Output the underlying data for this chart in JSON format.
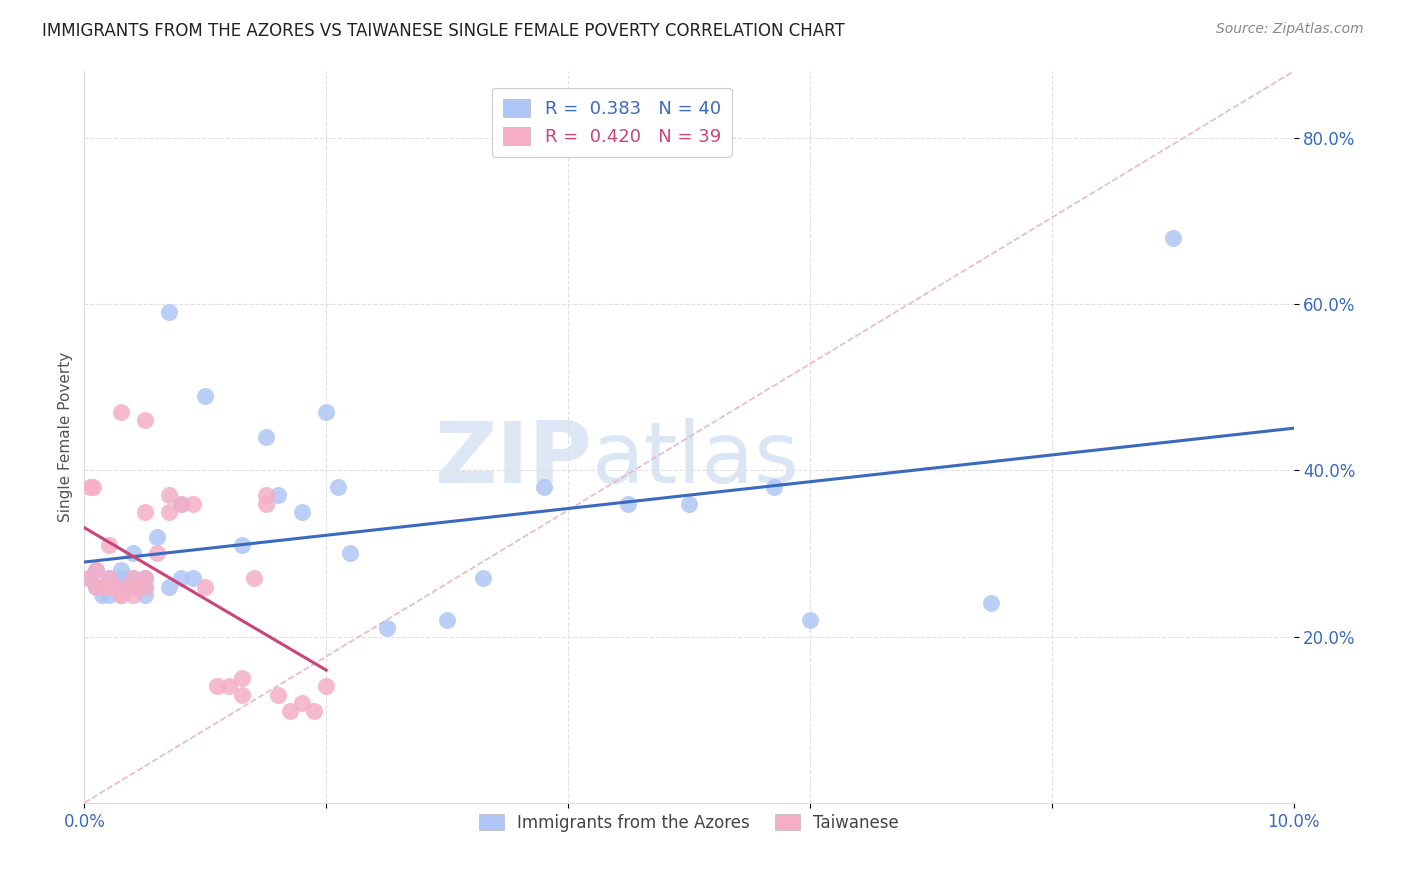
{
  "title": "IMMIGRANTS FROM THE AZORES VS TAIWANESE SINGLE FEMALE POVERTY CORRELATION CHART",
  "source": "Source: ZipAtlas.com",
  "ylabel": "Single Female Poverty",
  "legend_label1": "Immigrants from the Azores",
  "legend_label2": "Taiwanese",
  "r1": 0.383,
  "n1": 40,
  "r2": 0.42,
  "n2": 39,
  "color1": "#aec6f5",
  "color2": "#f5aec6",
  "trendline1_color": "#3a6abf",
  "trendline2_color": "#cc4477",
  "diagonal_color": "#e8b8c8",
  "xlim": [
    0.0,
    0.1
  ],
  "ylim": [
    0.0,
    0.88
  ],
  "xtick_pos": [
    0.0,
    0.02,
    0.04,
    0.06,
    0.08,
    0.1
  ],
  "xtick_labels": [
    "0.0%",
    "",
    "",
    "",
    "",
    "10.0%"
  ],
  "ytick_positions": [
    0.2,
    0.4,
    0.6,
    0.8
  ],
  "ytick_labels": [
    "20.0%",
    "40.0%",
    "60.0%",
    "80.0%"
  ],
  "watermark_zip": "ZIP",
  "watermark_atlas": "atlas",
  "azores_x": [
    0.0005,
    0.001,
    0.001,
    0.0015,
    0.002,
    0.002,
    0.002,
    0.003,
    0.003,
    0.003,
    0.004,
    0.004,
    0.004,
    0.005,
    0.005,
    0.005,
    0.006,
    0.007,
    0.007,
    0.008,
    0.008,
    0.009,
    0.01,
    0.013,
    0.015,
    0.016,
    0.018,
    0.02,
    0.021,
    0.022,
    0.025,
    0.03,
    0.033,
    0.038,
    0.045,
    0.05,
    0.057,
    0.06,
    0.075,
    0.09
  ],
  "azores_y": [
    0.27,
    0.26,
    0.28,
    0.25,
    0.27,
    0.26,
    0.25,
    0.27,
    0.28,
    0.26,
    0.3,
    0.26,
    0.27,
    0.25,
    0.26,
    0.27,
    0.32,
    0.59,
    0.26,
    0.27,
    0.36,
    0.27,
    0.49,
    0.31,
    0.44,
    0.37,
    0.35,
    0.47,
    0.38,
    0.3,
    0.21,
    0.22,
    0.27,
    0.38,
    0.36,
    0.36,
    0.38,
    0.22,
    0.24,
    0.68
  ],
  "taiwanese_x": [
    0.0003,
    0.0005,
    0.0007,
    0.001,
    0.001,
    0.0015,
    0.002,
    0.002,
    0.002,
    0.002,
    0.003,
    0.003,
    0.003,
    0.003,
    0.004,
    0.004,
    0.004,
    0.005,
    0.005,
    0.005,
    0.005,
    0.006,
    0.007,
    0.007,
    0.008,
    0.009,
    0.01,
    0.011,
    0.012,
    0.013,
    0.013,
    0.014,
    0.015,
    0.015,
    0.016,
    0.017,
    0.018,
    0.019,
    0.02
  ],
  "taiwanese_y": [
    0.27,
    0.38,
    0.38,
    0.26,
    0.28,
    0.26,
    0.26,
    0.31,
    0.27,
    0.26,
    0.25,
    0.26,
    0.25,
    0.47,
    0.27,
    0.26,
    0.25,
    0.27,
    0.26,
    0.46,
    0.35,
    0.3,
    0.35,
    0.37,
    0.36,
    0.36,
    0.26,
    0.14,
    0.14,
    0.13,
    0.15,
    0.27,
    0.36,
    0.37,
    0.13,
    0.11,
    0.12,
    0.11,
    0.14
  ]
}
